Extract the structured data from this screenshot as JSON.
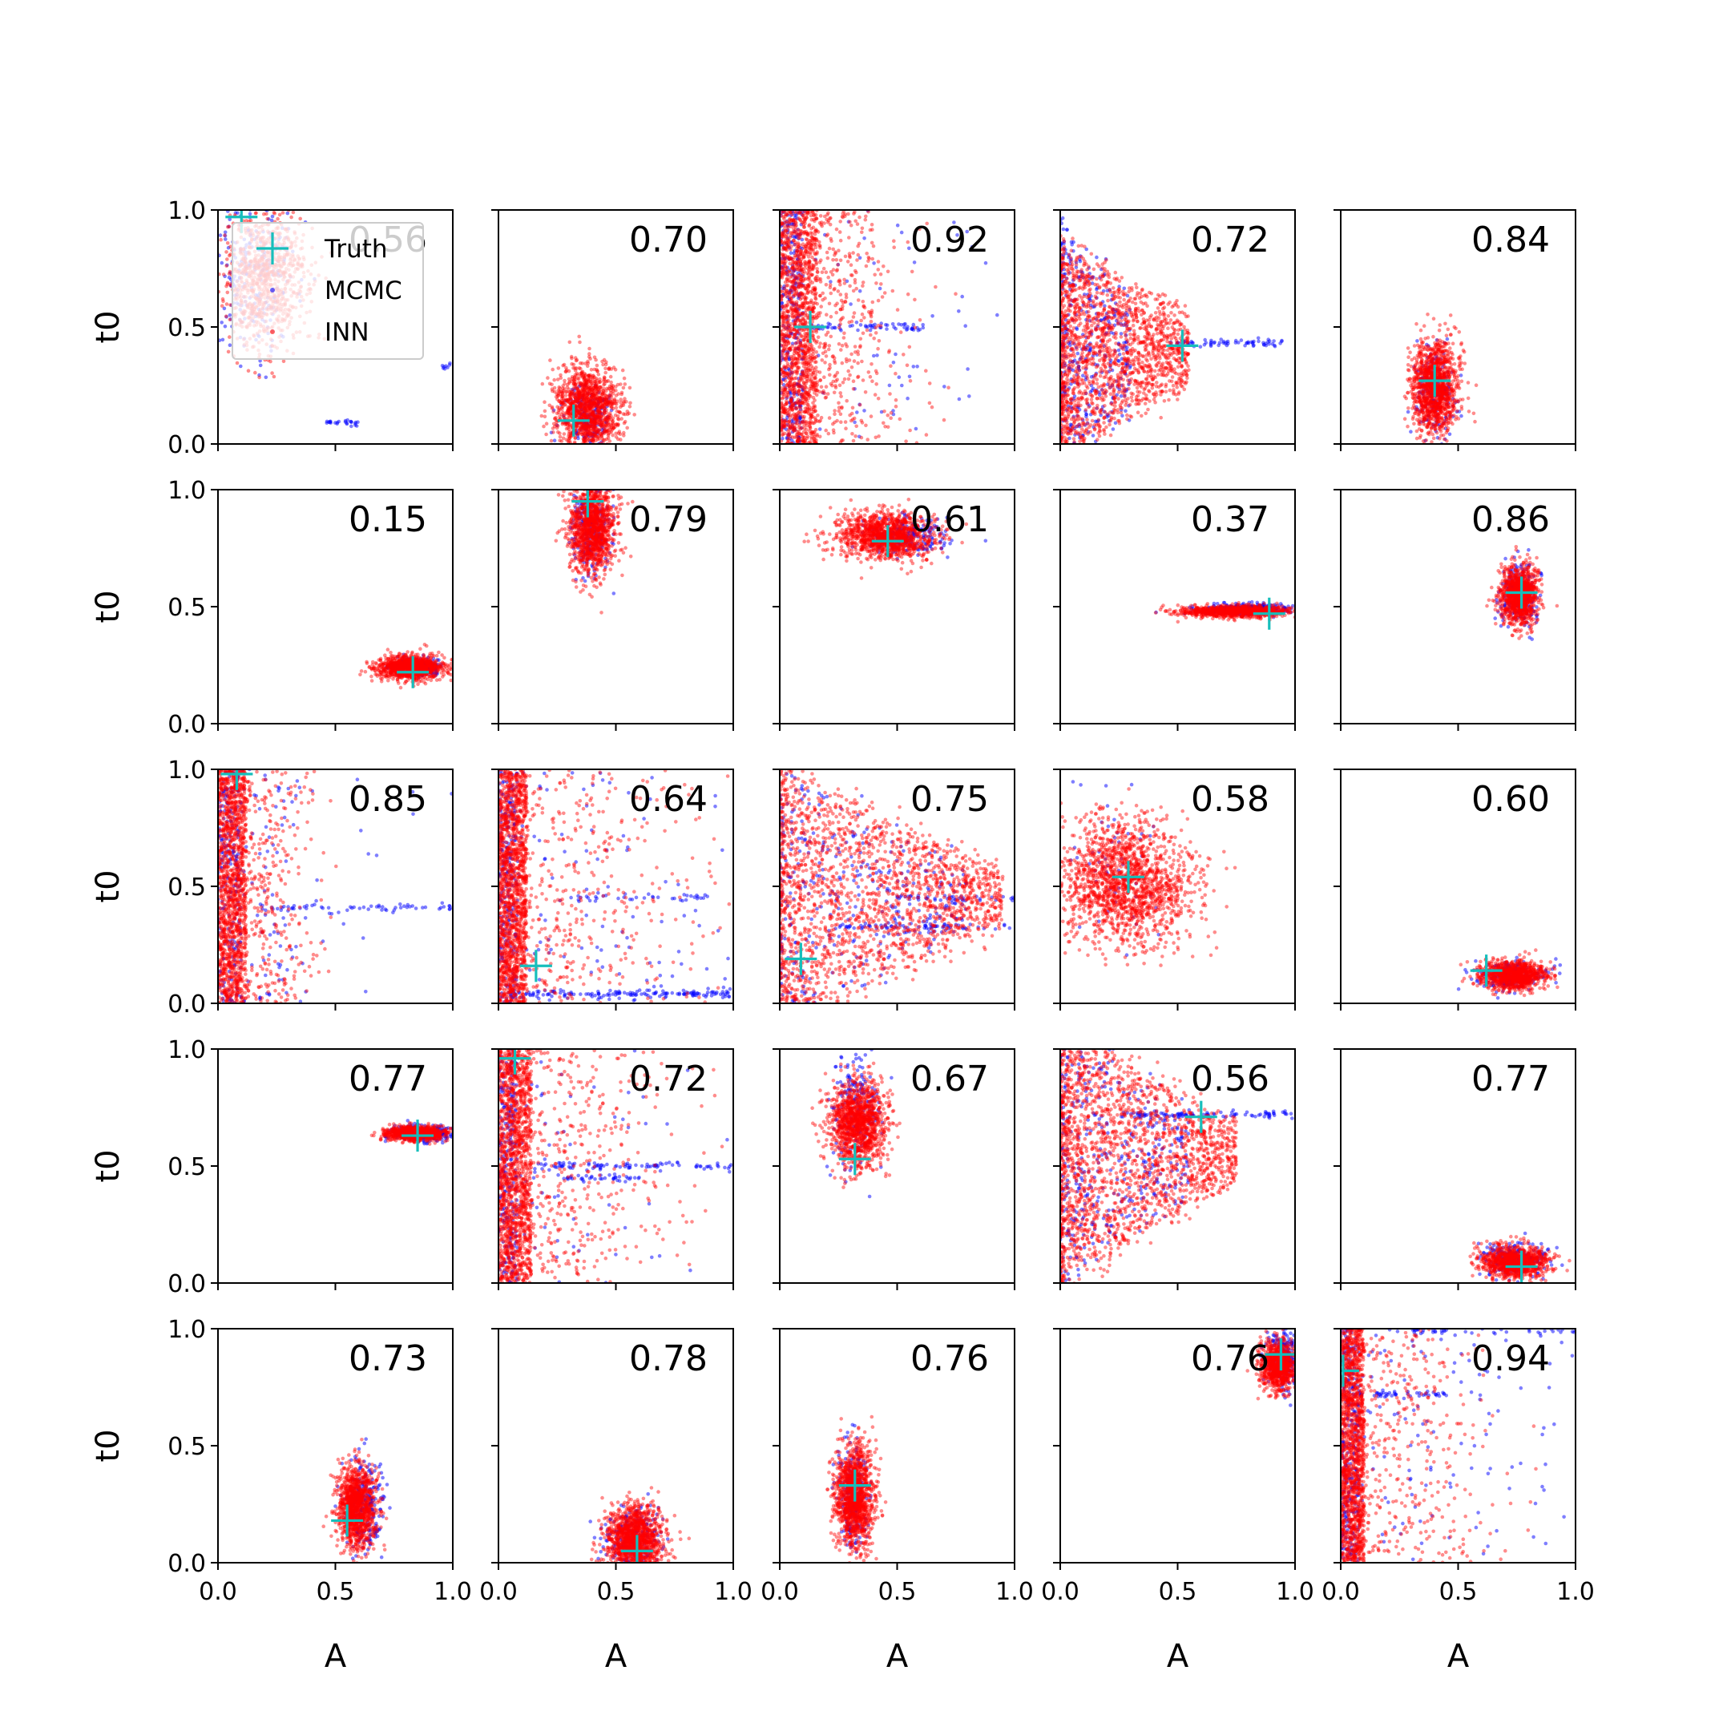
{
  "chart_data": {
    "type": "scatter",
    "layout": {
      "rows": 5,
      "cols": 5
    },
    "xlabel": "A",
    "ylabel": "t0",
    "xlim": [
      0.0,
      1.0
    ],
    "ylim": [
      0.0,
      1.0
    ],
    "xticks": [
      "0.0",
      "0.5",
      "1.0"
    ],
    "yticks": [
      "0.0",
      "0.5",
      "1.0"
    ],
    "grid": false,
    "legend": {
      "placement": "upper-left of first panel",
      "entries": [
        {
          "label": "Truth",
          "marker": "plus",
          "color": "#17bebb"
        },
        {
          "label": "MCMC",
          "marker": "dot",
          "color": "#0000ff"
        },
        {
          "label": "INN",
          "marker": "dot",
          "color": "#ff0000"
        }
      ]
    },
    "colors": {
      "truth": "#17bebb",
      "mcmc": "#0000ff",
      "inn": "#ff0000"
    },
    "panels": [
      {
        "score": "0.56",
        "truth": [
          0.1,
          0.97
        ],
        "inn": {
          "kind": "blob",
          "cx": 0.2,
          "cy": 0.7,
          "sx": 0.09,
          "sy": 0.14,
          "n": 900
        },
        "mcmc": {
          "kind": "blob",
          "cx": 0.15,
          "cy": 0.75,
          "sx": 0.1,
          "sy": 0.18,
          "n": 250
        },
        "mcmc_extra": [
          {
            "kind": "hline",
            "y": 0.09,
            "x0": 0.46,
            "x1": 0.6,
            "n": 25
          },
          {
            "kind": "hline",
            "y": 0.33,
            "x0": 0.93,
            "x1": 1.0,
            "n": 8
          }
        ]
      },
      {
        "score": "0.70",
        "truth": [
          0.32,
          0.1
        ],
        "inn": {
          "kind": "blob",
          "cx": 0.38,
          "cy": 0.15,
          "sx": 0.07,
          "sy": 0.09,
          "n": 1300
        },
        "mcmc": {
          "kind": "blob",
          "cx": 0.38,
          "cy": 0.12,
          "sx": 0.05,
          "sy": 0.06,
          "n": 200
        }
      },
      {
        "score": "0.92",
        "truth": [
          0.13,
          0.5
        ],
        "inn": {
          "kind": "wall",
          "xmax": 0.16,
          "spread": 0.2,
          "n": 1800
        },
        "mcmc": {
          "kind": "wall",
          "xmax": 0.1,
          "spread": 0.45,
          "n": 350
        },
        "mcmc_extra": [
          {
            "kind": "hline",
            "y": 0.5,
            "x0": 0.1,
            "x1": 0.62,
            "n": 60
          }
        ]
      },
      {
        "score": "0.72",
        "truth": [
          0.52,
          0.42
        ],
        "inn": {
          "kind": "fan",
          "x0": 0.0,
          "apex": 0.55,
          "cy": 0.4,
          "spread": 0.45,
          "n": 1800
        },
        "mcmc": {
          "kind": "fan",
          "x0": 0.0,
          "apex": 0.3,
          "cy": 0.4,
          "spread": 0.55,
          "n": 400
        },
        "mcmc_extra": [
          {
            "kind": "hline",
            "y": 0.43,
            "x0": 0.45,
            "x1": 0.95,
            "n": 70
          }
        ]
      },
      {
        "score": "0.84",
        "truth": [
          0.4,
          0.27
        ],
        "inn": {
          "kind": "blob",
          "cx": 0.4,
          "cy": 0.25,
          "sx": 0.05,
          "sy": 0.1,
          "n": 1300
        },
        "mcmc": {
          "kind": "blob",
          "cx": 0.4,
          "cy": 0.23,
          "sx": 0.04,
          "sy": 0.09,
          "n": 200
        }
      },
      {
        "score": "0.15",
        "truth": [
          0.83,
          0.22
        ],
        "inn": {
          "kind": "blob",
          "cx": 0.82,
          "cy": 0.24,
          "sx": 0.07,
          "sy": 0.025,
          "n": 1100
        },
        "mcmc": {
          "kind": "blob",
          "cx": 0.85,
          "cy": 0.24,
          "sx": 0.06,
          "sy": 0.02,
          "n": 200
        }
      },
      {
        "score": "0.79",
        "truth": [
          0.38,
          0.95
        ],
        "inn": {
          "kind": "blob",
          "cx": 0.4,
          "cy": 0.84,
          "sx": 0.05,
          "sy": 0.1,
          "n": 1300
        },
        "mcmc": {
          "kind": "blob",
          "cx": 0.39,
          "cy": 0.84,
          "sx": 0.04,
          "sy": 0.09,
          "n": 250
        }
      },
      {
        "score": "0.61",
        "truth": [
          0.46,
          0.78
        ],
        "inn": {
          "kind": "blob",
          "cx": 0.45,
          "cy": 0.8,
          "sx": 0.1,
          "sy": 0.05,
          "n": 1300
        },
        "mcmc": {
          "kind": "blob",
          "cx": 0.55,
          "cy": 0.8,
          "sx": 0.09,
          "sy": 0.04,
          "n": 200
        }
      },
      {
        "score": "0.37",
        "truth": [
          0.89,
          0.47
        ],
        "inn": {
          "kind": "blob",
          "cx": 0.75,
          "cy": 0.48,
          "sx": 0.12,
          "sy": 0.012,
          "n": 900
        },
        "mcmc": {
          "kind": "blob",
          "cx": 0.8,
          "cy": 0.49,
          "sx": 0.1,
          "sy": 0.012,
          "n": 300
        }
      },
      {
        "score": "0.86",
        "truth": [
          0.77,
          0.56
        ],
        "inn": {
          "kind": "blob",
          "cx": 0.76,
          "cy": 0.55,
          "sx": 0.04,
          "sy": 0.06,
          "n": 1100
        },
        "mcmc": {
          "kind": "blob",
          "cx": 0.76,
          "cy": 0.55,
          "sx": 0.04,
          "sy": 0.07,
          "n": 250
        }
      },
      {
        "score": "0.85",
        "truth": [
          0.08,
          0.98
        ],
        "inn": {
          "kind": "wall",
          "xmax": 0.12,
          "spread": 0.14,
          "n": 1700
        },
        "mcmc": {
          "kind": "wall",
          "xmax": 0.1,
          "spread": 0.16,
          "n": 300
        },
        "mcmc_extra": [
          {
            "kind": "hline",
            "y": 0.41,
            "x0": 0.18,
            "x1": 1.0,
            "n": 60
          },
          {
            "kind": "scatter",
            "n": 25
          }
        ]
      },
      {
        "score": "0.64",
        "truth": [
          0.16,
          0.16
        ],
        "inn": {
          "kind": "wall",
          "xmax": 0.12,
          "spread": 0.35,
          "n": 1900
        },
        "mcmc": {
          "kind": "wall",
          "xmax": 0.08,
          "spread": 0.45,
          "n": 300
        },
        "mcmc_extra": [
          {
            "kind": "hline",
            "y": 0.04,
            "x0": 0.05,
            "x1": 1.0,
            "n": 150
          },
          {
            "kind": "hline",
            "y": 0.45,
            "x0": 0.3,
            "x1": 0.9,
            "n": 40
          },
          {
            "kind": "scatter",
            "n": 40
          }
        ]
      },
      {
        "score": "0.75",
        "truth": [
          0.09,
          0.19
        ],
        "inn": {
          "kind": "fan",
          "x0": 0.0,
          "apex": 0.95,
          "cy": 0.45,
          "spread": 0.55,
          "n": 2000
        },
        "mcmc": {
          "kind": "fan",
          "x0": 0.0,
          "apex": 0.8,
          "cy": 0.45,
          "spread": 0.55,
          "n": 350
        },
        "mcmc_extra": [
          {
            "kind": "hline",
            "y": 0.33,
            "x0": 0.25,
            "x1": 1.0,
            "n": 70
          },
          {
            "kind": "hline",
            "y": 0.45,
            "x0": 0.5,
            "x1": 1.0,
            "n": 40
          }
        ]
      },
      {
        "score": "0.58",
        "truth": [
          0.29,
          0.54
        ],
        "inn": {
          "kind": "blob",
          "cx": 0.28,
          "cy": 0.52,
          "sx": 0.14,
          "sy": 0.13,
          "n": 1700
        },
        "mcmc": {
          "kind": "blob",
          "cx": 0.22,
          "cy": 0.62,
          "sx": 0.08,
          "sy": 0.2,
          "n": 60
        }
      },
      {
        "score": "0.60",
        "truth": [
          0.62,
          0.14
        ],
        "inn": {
          "kind": "blob",
          "cx": 0.74,
          "cy": 0.12,
          "sx": 0.07,
          "sy": 0.03,
          "n": 1000
        },
        "mcmc": {
          "kind": "blob",
          "cx": 0.72,
          "cy": 0.12,
          "sx": 0.07,
          "sy": 0.03,
          "n": 250
        }
      },
      {
        "score": "0.77",
        "truth": [
          0.85,
          0.63
        ],
        "inn": {
          "kind": "blob",
          "cx": 0.84,
          "cy": 0.64,
          "sx": 0.06,
          "sy": 0.015,
          "n": 900
        },
        "mcmc": {
          "kind": "blob",
          "cx": 0.87,
          "cy": 0.64,
          "sx": 0.07,
          "sy": 0.018,
          "n": 250
        }
      },
      {
        "score": "0.72",
        "truth": [
          0.07,
          0.96
        ],
        "inn": {
          "kind": "wall",
          "xmax": 0.14,
          "spread": 0.3,
          "n": 1900
        },
        "mcmc": {
          "kind": "wall",
          "xmax": 0.08,
          "spread": 0.4,
          "n": 300
        },
        "mcmc_extra": [
          {
            "kind": "hline",
            "y": 0.5,
            "x0": 0.15,
            "x1": 1.0,
            "n": 90
          },
          {
            "kind": "hline",
            "y": 0.45,
            "x0": 0.25,
            "x1": 0.6,
            "n": 40
          }
        ]
      },
      {
        "score": "0.67",
        "truth": [
          0.32,
          0.53
        ],
        "inn": {
          "kind": "blob",
          "cx": 0.33,
          "cy": 0.68,
          "sx": 0.06,
          "sy": 0.09,
          "n": 1300
        },
        "mcmc": {
          "kind": "blob",
          "cx": 0.33,
          "cy": 0.75,
          "sx": 0.05,
          "sy": 0.12,
          "n": 200
        }
      },
      {
        "score": "0.56",
        "truth": [
          0.6,
          0.71
        ],
        "inn": {
          "kind": "fan",
          "x0": 0.0,
          "apex": 0.75,
          "cy": 0.55,
          "spread": 0.55,
          "n": 2000
        },
        "mcmc": {
          "kind": "fan",
          "x0": 0.0,
          "apex": 0.55,
          "cy": 0.55,
          "spread": 0.55,
          "n": 400
        },
        "mcmc_extra": [
          {
            "kind": "hline",
            "y": 0.72,
            "x0": 0.25,
            "x1": 1.0,
            "n": 100
          }
        ]
      },
      {
        "score": "0.77",
        "truth": [
          0.77,
          0.07
        ],
        "inn": {
          "kind": "blob",
          "cx": 0.74,
          "cy": 0.09,
          "sx": 0.07,
          "sy": 0.035,
          "n": 1000
        },
        "mcmc": {
          "kind": "blob",
          "cx": 0.74,
          "cy": 0.1,
          "sx": 0.07,
          "sy": 0.035,
          "n": 250
        }
      },
      {
        "score": "0.73",
        "truth": [
          0.55,
          0.18
        ],
        "inn": {
          "kind": "blob",
          "cx": 0.59,
          "cy": 0.24,
          "sx": 0.04,
          "sy": 0.09,
          "n": 1200
        },
        "mcmc": {
          "kind": "blob",
          "cx": 0.62,
          "cy": 0.24,
          "sx": 0.04,
          "sy": 0.1,
          "n": 250
        }
      },
      {
        "score": "0.78",
        "truth": [
          0.59,
          0.05
        ],
        "inn": {
          "kind": "blob",
          "cx": 0.58,
          "cy": 0.1,
          "sx": 0.06,
          "sy": 0.07,
          "n": 1300
        },
        "mcmc": {
          "kind": "blob",
          "cx": 0.58,
          "cy": 0.1,
          "sx": 0.06,
          "sy": 0.07,
          "n": 250
        }
      },
      {
        "score": "0.76",
        "truth": [
          0.32,
          0.33
        ],
        "inn": {
          "kind": "blob",
          "cx": 0.32,
          "cy": 0.28,
          "sx": 0.04,
          "sy": 0.11,
          "n": 1300
        },
        "mcmc": {
          "kind": "blob",
          "cx": 0.31,
          "cy": 0.28,
          "sx": 0.03,
          "sy": 0.12,
          "n": 250
        }
      },
      {
        "score": "0.76",
        "truth": [
          0.94,
          0.89
        ],
        "inn": {
          "kind": "blob",
          "cx": 0.93,
          "cy": 0.84,
          "sx": 0.035,
          "sy": 0.05,
          "n": 900
        },
        "mcmc": {
          "kind": "blob",
          "cx": 0.95,
          "cy": 0.88,
          "sx": 0.035,
          "sy": 0.06,
          "n": 250
        }
      },
      {
        "score": "0.94",
        "truth": [
          0.01,
          0.82
        ],
        "inn": {
          "kind": "wall",
          "xmax": 0.1,
          "spread": 0.25,
          "n": 1800
        },
        "mcmc": {
          "kind": "wall",
          "xmax": 0.08,
          "spread": 0.4,
          "n": 350
        },
        "mcmc_extra": [
          {
            "kind": "hline",
            "y": 0.72,
            "x0": 0.08,
            "x1": 0.45,
            "n": 50
          },
          {
            "kind": "hline",
            "y": 0.99,
            "x0": 0.3,
            "x1": 1.0,
            "n": 40
          },
          {
            "kind": "scatter",
            "n": 40
          }
        ]
      }
    ]
  }
}
